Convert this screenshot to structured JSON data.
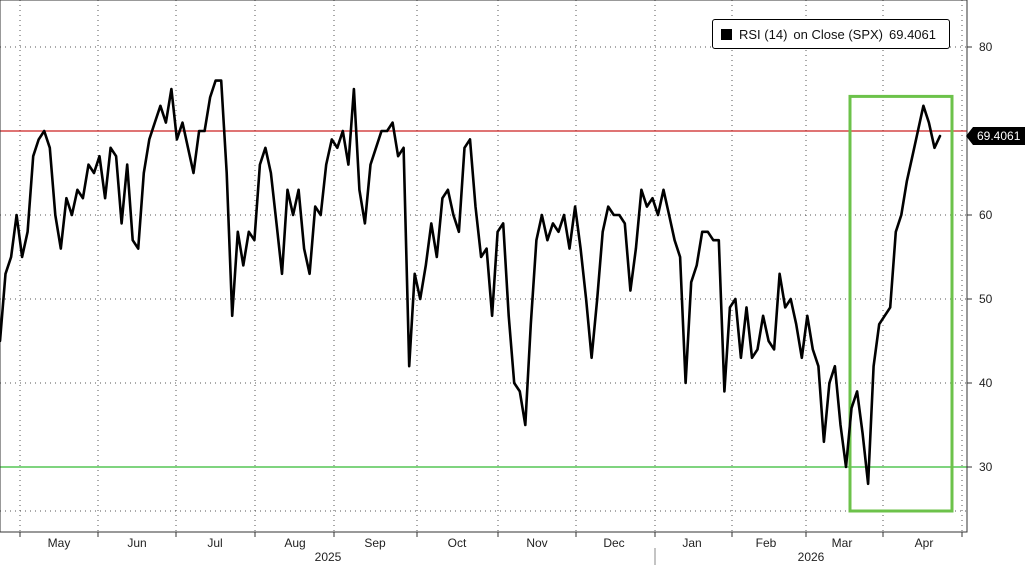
{
  "chart_data": {
    "type": "line",
    "series": [
      {
        "name": "RSI (14)",
        "values": [
          45,
          53,
          55,
          60,
          55,
          58,
          67,
          69,
          70,
          68,
          60,
          56,
          62,
          60,
          63,
          62,
          66,
          65,
          67,
          62,
          68,
          67,
          59,
          66,
          57,
          56,
          65,
          69,
          71,
          73,
          71,
          75,
          69,
          71,
          68,
          65,
          70,
          70,
          74,
          76,
          76,
          65,
          48,
          58,
          54,
          58,
          57,
          66,
          68,
          65,
          59,
          53,
          63,
          60,
          63,
          56,
          53,
          61,
          60,
          66,
          69,
          68,
          70,
          66,
          75,
          63,
          59,
          66,
          68,
          70,
          70,
          71,
          67,
          68,
          42,
          53,
          50,
          54,
          59,
          55,
          62,
          63,
          60,
          58,
          68,
          69,
          61,
          55,
          56,
          48,
          58,
          59,
          48,
          40,
          39,
          35,
          47,
          57,
          60,
          57,
          59,
          58,
          60,
          56,
          61,
          56,
          50,
          43,
          50,
          58,
          61,
          60,
          60,
          59,
          51,
          56,
          63,
          61,
          62,
          60,
          63,
          60,
          57,
          55,
          40,
          52,
          54,
          58,
          58,
          57,
          57,
          39,
          49,
          50,
          43,
          49,
          43,
          44,
          48,
          45,
          44,
          53,
          49,
          50,
          47,
          43,
          48,
          44,
          42,
          33,
          40,
          42,
          35,
          30,
          37,
          39,
          34,
          28,
          42,
          47,
          48,
          49,
          58,
          60,
          64,
          67,
          70,
          73,
          71,
          68,
          69.4061
        ],
        "last_value_label": "69.4061"
      }
    ],
    "x_ticks": [
      "May",
      "Jun",
      "Jul",
      "Aug",
      "Sep",
      "Oct",
      "Nov",
      "Dec",
      "Jan",
      "Feb",
      "Mar",
      "Apr"
    ],
    "year_labels": [
      "2025",
      "2026"
    ],
    "y_ticks": [
      30,
      40,
      50,
      60,
      70,
      80
    ],
    "ylim": [
      22,
      86
    ],
    "reference_lines": [
      {
        "value": 70,
        "color": "#cc2222"
      },
      {
        "value": 30,
        "color": "#33bb33"
      }
    ],
    "highlight_box": {
      "from_label": "Mar",
      "to_label": "Apr",
      "y_range": [
        25,
        74
      ],
      "color": "#6cc24a"
    },
    "legend": {
      "symbol": "RSI (14)",
      "text": "on Close (SPX)",
      "value": "69.4061",
      "position": "top-right"
    },
    "grid": true,
    "line_color": "#000000"
  }
}
